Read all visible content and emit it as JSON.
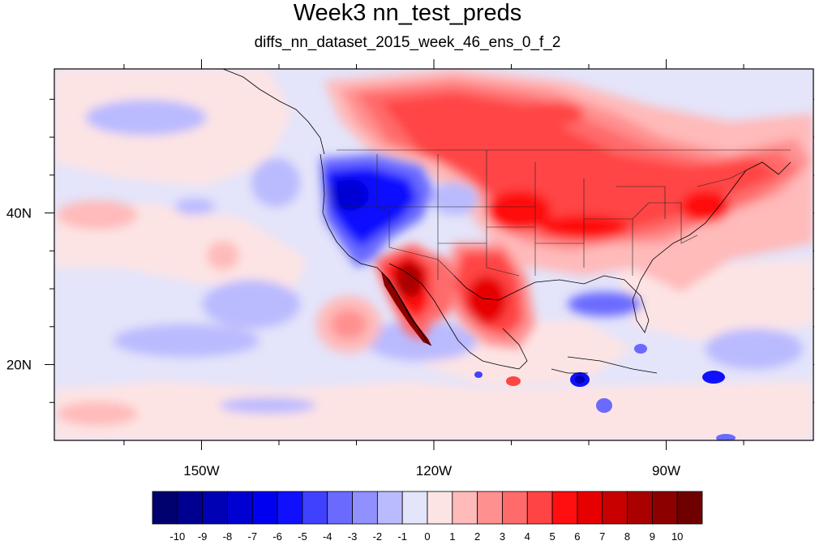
{
  "title": "Week3 nn_test_preds",
  "subtitle": "diffs_nn_dataset_2015_week_46_ens_0_f_2",
  "map": {
    "projection": "cylindrical equidistant",
    "lon_range": [
      -169,
      -71
    ],
    "lat_range": [
      10,
      59
    ],
    "lon_ticks": [
      {
        "value": -150,
        "label": "150W"
      },
      {
        "value": -120,
        "label": "120W"
      },
      {
        "value": -90,
        "label": "90W"
      }
    ],
    "lat_ticks": [
      {
        "value": 20,
        "label": "20N"
      },
      {
        "value": 40,
        "label": "40N"
      }
    ],
    "field": "temperature difference",
    "coastlines": true,
    "state_borders": true
  },
  "colorbar": {
    "labels": [
      "-10",
      "-9",
      "-8",
      "-7",
      "-6",
      "-5",
      "-4",
      "-3",
      "-2",
      "-1",
      "0",
      "1",
      "2",
      "3",
      "4",
      "5",
      "6",
      "7",
      "8",
      "9",
      "10"
    ],
    "colors": [
      "#00006e",
      "#000090",
      "#0000b4",
      "#0000d2",
      "#0000f0",
      "#1010ff",
      "#4040ff",
      "#6a6aff",
      "#9090ff",
      "#babaff",
      "#e4e4fa",
      "#fde4e4",
      "#ffbaba",
      "#ff9090",
      "#ff6a6a",
      "#ff4444",
      "#ff0f0f",
      "#e60000",
      "#c80000",
      "#aa0000",
      "#8c0000",
      "#700000"
    ]
  }
}
